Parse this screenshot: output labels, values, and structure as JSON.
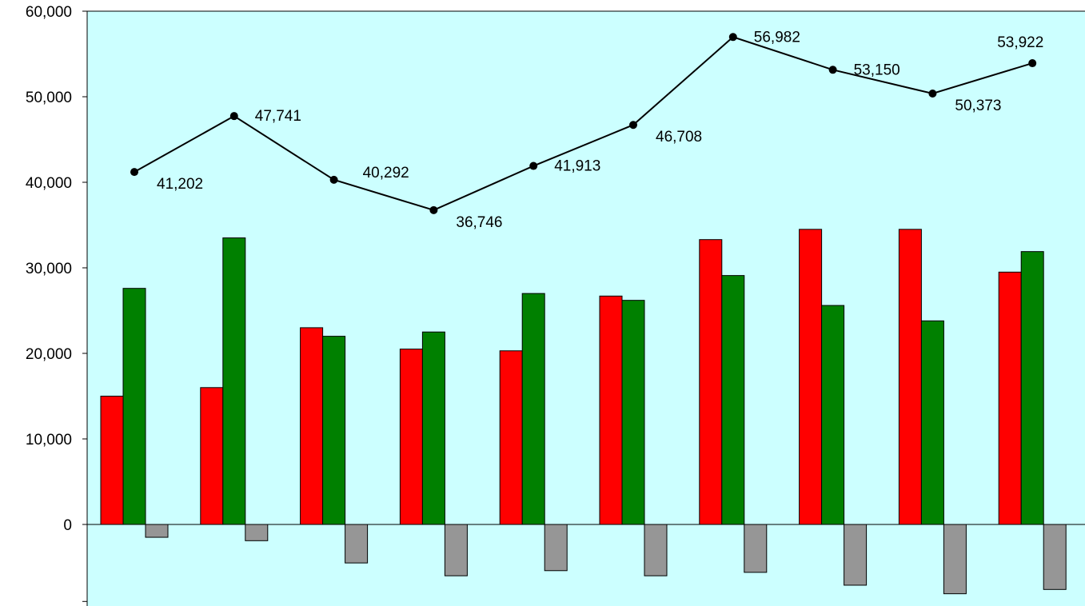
{
  "chart_data": {
    "type": "bar",
    "title": "",
    "xlabel": "",
    "ylabel": "",
    "ylim": [
      -9000,
      60000
    ],
    "yticks": [
      0,
      10000,
      20000,
      30000,
      40000,
      50000,
      60000
    ],
    "ytick_labels": [
      "0",
      "10,000",
      "20,000",
      "30,000",
      "40,000",
      "50,000",
      "60,000"
    ],
    "grid": false,
    "legend": "none",
    "colors": {
      "plot_background": "#ccffff",
      "series_red": "#ff0000",
      "series_green": "#008000",
      "series_gray": "#969696",
      "line": "#000000"
    },
    "series": [
      {
        "type": "bar",
        "color": "#ff0000",
        "values": [
          15000,
          16000,
          23000,
          20500,
          20300,
          26700,
          33300,
          34500,
          34500,
          29500
        ]
      },
      {
        "type": "bar",
        "color": "#008000",
        "values": [
          27600,
          33500,
          22000,
          22500,
          27000,
          26200,
          29100,
          25600,
          23800,
          31900
        ]
      },
      {
        "type": "bar",
        "color": "#969696",
        "values": [
          -1500,
          -1900,
          -4500,
          -6000,
          -5400,
          -6000,
          -5600,
          -7100,
          -8100,
          -7600
        ]
      },
      {
        "type": "line",
        "color": "#000000",
        "values": [
          41202,
          47741,
          40292,
          36746,
          41913,
          46708,
          56982,
          53150,
          50373,
          53922
        ],
        "labels": [
          "41,202",
          "47,741",
          "40,292",
          "36,746",
          "41,913",
          "46,708",
          "56,982",
          "53,150",
          "50,373",
          "53,922"
        ]
      }
    ]
  }
}
